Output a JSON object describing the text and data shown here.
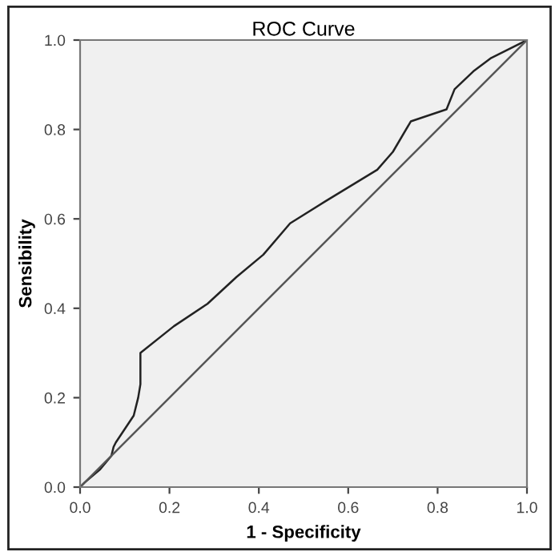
{
  "chart_data": {
    "type": "line",
    "title": "ROC Curve",
    "xlabel": "1 - Specificity",
    "ylabel": "Sensibility",
    "series": [
      {
        "color": "#222222",
        "x": [
          0,
          0.01,
          0.045,
          0.07,
          0.075,
          0.08,
          0.12,
          0.13,
          0.135,
          0.135,
          0.21,
          0.285,
          0.35,
          0.41,
          0.47,
          0.55,
          0.665,
          0.7,
          0.74,
          0.82,
          0.838,
          0.88,
          0.92,
          1
        ],
        "values": [
          0,
          0.01,
          0.04,
          0.07,
          0.09,
          0.1,
          0.16,
          0.2,
          0.23,
          0.3,
          0.36,
          0.41,
          0.47,
          0.52,
          0.59,
          0.64,
          0.71,
          0.75,
          0.818,
          0.845,
          0.89,
          0.93,
          0.96,
          1
        ]
      },
      {
        "color": "#555555",
        "x": [
          0,
          1
        ],
        "values": [
          0,
          1
        ]
      }
    ],
    "xlim": [
      0,
      1
    ],
    "ylim": [
      0,
      1
    ],
    "xticks": [
      {
        "value": 0,
        "label": "0.0"
      },
      0.2,
      0.4,
      0.6,
      0.8,
      {
        "value": 1,
        "label": "1.0"
      }
    ],
    "yticks": [
      {
        "value": 0,
        "label": "0.0"
      },
      0.2,
      0.4,
      0.6,
      0.8,
      {
        "value": 1,
        "label": "1.0"
      }
    ],
    "grid": false,
    "marker": "none",
    "line_style": "solid"
  }
}
